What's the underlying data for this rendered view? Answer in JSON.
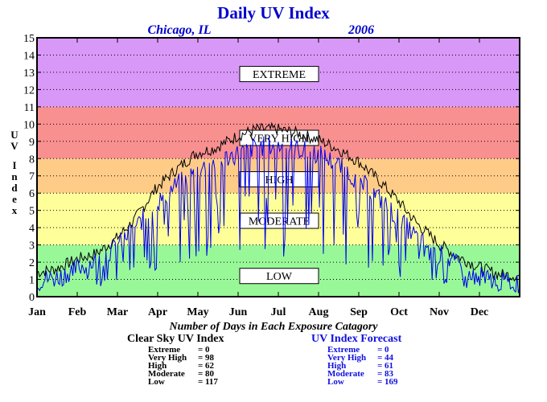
{
  "chart_data": {
    "type": "line",
    "title": "Daily UV Index",
    "location": "Chicago, IL",
    "year": "2006",
    "ylabel": "UV Index",
    "ylim": [
      0,
      15
    ],
    "yticks": [
      0,
      1,
      2,
      3,
      4,
      5,
      6,
      7,
      8,
      9,
      10,
      11,
      12,
      13,
      14,
      15
    ],
    "xlim": [
      1,
      365
    ],
    "months": [
      "Jan",
      "Feb",
      "Mar",
      "Apr",
      "May",
      "Jun",
      "Jul",
      "Aug",
      "Sep",
      "Oct",
      "Nov",
      "Dec"
    ],
    "grid": true,
    "bands": [
      {
        "label": "LOW",
        "from": 0,
        "to": 3,
        "color": "#98f898",
        "label_y": 1.2
      },
      {
        "label": "MODERATE",
        "from": 3,
        "to": 6,
        "color": "#ffff99",
        "label_y": 4.4
      },
      {
        "label": "HIGH",
        "from": 6,
        "to": 8,
        "color": "#ffcc88",
        "label_y": 6.8
      },
      {
        "label": "VERY HIGH",
        "from": 8,
        "to": 11,
        "color": "#f89090",
        "label_y": 9.2
      },
      {
        "label": "EXTREME",
        "from": 11,
        "to": 15,
        "color": "#d898f8",
        "label_y": 12.9
      }
    ],
    "series": [
      {
        "name": "Clear Sky UV Index",
        "color": "#000000",
        "x": [
          1,
          15,
          32,
          46,
          60,
          74,
          91,
          105,
          121,
          135,
          152,
          166,
          182,
          196,
          213,
          227,
          244,
          258,
          274,
          288,
          305,
          319,
          335,
          349,
          365
        ],
        "y": [
          1.4,
          1.6,
          2.2,
          2.5,
          3.3,
          4.4,
          6.3,
          7.3,
          8.3,
          8.6,
          9.3,
          9.7,
          9.7,
          9.5,
          9.1,
          8.6,
          7.8,
          6.8,
          5.5,
          4.2,
          3.0,
          2.3,
          1.7,
          1.3,
          1.2
        ]
      },
      {
        "name": "UV Index Forecast",
        "color": "#0000ee",
        "x": [
          1,
          15,
          32,
          46,
          60,
          74,
          91,
          105,
          121,
          135,
          152,
          166,
          182,
          196,
          213,
          227,
          244,
          258,
          274,
          288,
          305,
          319,
          335,
          349,
          365
        ],
        "y": [
          1.1,
          1.2,
          1.8,
          2.2,
          3.0,
          4.0,
          5.5,
          6.5,
          7.4,
          7.9,
          8.4,
          8.8,
          8.9,
          8.7,
          8.4,
          7.8,
          6.8,
          5.9,
          4.6,
          3.5,
          2.6,
          1.9,
          1.3,
          1.0,
          0.9
        ]
      }
    ]
  },
  "summary": {
    "caption": "Number of Days in Each Exposure Catagory",
    "clear_sky": {
      "title": "Clear Sky UV Index",
      "rows": [
        {
          "label": "Extreme",
          "value": "0"
        },
        {
          "label": "Very High",
          "value": "98"
        },
        {
          "label": "High",
          "value": "62"
        },
        {
          "label": "Moderate",
          "value": "80"
        },
        {
          "label": "Low",
          "value": "117"
        }
      ]
    },
    "forecast": {
      "title": "UV Index Forecast",
      "rows": [
        {
          "label": "Extreme",
          "value": "0"
        },
        {
          "label": "Very High",
          "value": "44"
        },
        {
          "label": "High",
          "value": "61"
        },
        {
          "label": "Moderate",
          "value": "83"
        },
        {
          "label": "Low",
          "value": "169"
        }
      ]
    }
  },
  "colors": {
    "clear_sky": "#000000",
    "forecast": "#1010e0",
    "title": "#0000cc"
  }
}
